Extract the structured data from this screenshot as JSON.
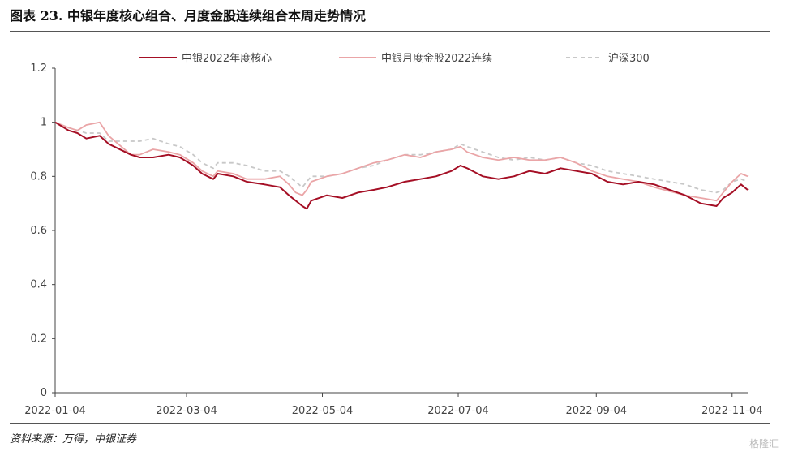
{
  "header": {
    "title": "图表 23. 中银年度核心组合、月度金股连续组合本周走势情况"
  },
  "footer": {
    "source": "资料来源：万得，中银证券",
    "watermark": "格隆汇"
  },
  "colors": {
    "core": "#a50f25",
    "monthly": "#eaa5a7",
    "csi300": "#c8c8c8",
    "axis": "#444444"
  },
  "chart_data": {
    "type": "line",
    "title": "",
    "xlabel": "",
    "ylabel": "",
    "ylim": [
      0,
      1.2
    ],
    "yticks": [
      "0",
      "0.2",
      "0.4",
      "0.6",
      "0.8",
      "1",
      "1.2"
    ],
    "xticks": [
      "2022-01-04",
      "2022-03-04",
      "2022-05-04",
      "2022-07-04",
      "2022-09-04",
      "2022-11-04"
    ],
    "xrange": [
      "2022-01-04",
      "2022-11-11"
    ],
    "grid": false,
    "legend_position": "top",
    "series": [
      {
        "name": "中银2022年度核心",
        "style": "solid",
        "x": [
          "2022-01-04",
          "2022-01-10",
          "2022-01-14",
          "2022-01-18",
          "2022-01-24",
          "2022-01-28",
          "2022-02-07",
          "2022-02-11",
          "2022-02-17",
          "2022-02-24",
          "2022-03-01",
          "2022-03-07",
          "2022-03-11",
          "2022-03-16",
          "2022-03-18",
          "2022-03-25",
          "2022-03-31",
          "2022-04-08",
          "2022-04-15",
          "2022-04-19",
          "2022-04-22",
          "2022-04-25",
          "2022-04-27",
          "2022-04-29",
          "2022-05-06",
          "2022-05-13",
          "2022-05-20",
          "2022-05-27",
          "2022-06-02",
          "2022-06-10",
          "2022-06-17",
          "2022-06-24",
          "2022-07-01",
          "2022-07-05",
          "2022-07-08",
          "2022-07-15",
          "2022-07-22",
          "2022-07-29",
          "2022-08-05",
          "2022-08-12",
          "2022-08-19",
          "2022-08-26",
          "2022-09-02",
          "2022-09-09",
          "2022-09-16",
          "2022-09-23",
          "2022-09-30",
          "2022-10-14",
          "2022-10-21",
          "2022-10-28",
          "2022-10-31",
          "2022-11-04",
          "2022-11-08",
          "2022-11-11"
        ],
        "values": [
          1.0,
          0.97,
          0.96,
          0.94,
          0.95,
          0.92,
          0.88,
          0.87,
          0.87,
          0.88,
          0.87,
          0.84,
          0.81,
          0.79,
          0.81,
          0.8,
          0.78,
          0.77,
          0.76,
          0.73,
          0.71,
          0.69,
          0.68,
          0.71,
          0.73,
          0.72,
          0.74,
          0.75,
          0.76,
          0.78,
          0.79,
          0.8,
          0.82,
          0.84,
          0.83,
          0.8,
          0.79,
          0.8,
          0.82,
          0.81,
          0.83,
          0.82,
          0.81,
          0.78,
          0.77,
          0.78,
          0.77,
          0.73,
          0.7,
          0.69,
          0.72,
          0.74,
          0.77,
          0.75
        ]
      },
      {
        "name": "中银月度金股2022连续",
        "style": "solid",
        "x": [
          "2022-01-04",
          "2022-01-10",
          "2022-01-14",
          "2022-01-18",
          "2022-01-24",
          "2022-01-28",
          "2022-02-07",
          "2022-02-11",
          "2022-02-17",
          "2022-02-24",
          "2022-03-01",
          "2022-03-07",
          "2022-03-11",
          "2022-03-16",
          "2022-03-18",
          "2022-03-25",
          "2022-03-31",
          "2022-04-08",
          "2022-04-15",
          "2022-04-19",
          "2022-04-22",
          "2022-04-25",
          "2022-04-27",
          "2022-04-29",
          "2022-05-06",
          "2022-05-13",
          "2022-05-20",
          "2022-05-27",
          "2022-06-02",
          "2022-06-10",
          "2022-06-17",
          "2022-06-24",
          "2022-07-01",
          "2022-07-05",
          "2022-07-08",
          "2022-07-15",
          "2022-07-22",
          "2022-07-29",
          "2022-08-05",
          "2022-08-12",
          "2022-08-19",
          "2022-08-26",
          "2022-09-02",
          "2022-09-09",
          "2022-09-16",
          "2022-09-23",
          "2022-09-30",
          "2022-10-14",
          "2022-10-21",
          "2022-10-28",
          "2022-10-31",
          "2022-11-04",
          "2022-11-08",
          "2022-11-11"
        ],
        "values": [
          1.0,
          0.98,
          0.97,
          0.99,
          1.0,
          0.95,
          0.88,
          0.88,
          0.9,
          0.89,
          0.88,
          0.85,
          0.82,
          0.8,
          0.82,
          0.81,
          0.79,
          0.79,
          0.8,
          0.77,
          0.74,
          0.73,
          0.75,
          0.78,
          0.8,
          0.81,
          0.83,
          0.85,
          0.86,
          0.88,
          0.87,
          0.89,
          0.9,
          0.91,
          0.89,
          0.87,
          0.86,
          0.87,
          0.86,
          0.86,
          0.87,
          0.85,
          0.82,
          0.8,
          0.79,
          0.78,
          0.76,
          0.73,
          0.72,
          0.71,
          0.74,
          0.78,
          0.81,
          0.8
        ]
      },
      {
        "name": "沪深300",
        "style": "dashed",
        "x": [
          "2022-01-04",
          "2022-01-10",
          "2022-01-14",
          "2022-01-18",
          "2022-01-24",
          "2022-01-28",
          "2022-02-07",
          "2022-02-11",
          "2022-02-17",
          "2022-02-24",
          "2022-03-01",
          "2022-03-07",
          "2022-03-11",
          "2022-03-16",
          "2022-03-18",
          "2022-03-25",
          "2022-03-31",
          "2022-04-08",
          "2022-04-15",
          "2022-04-19",
          "2022-04-22",
          "2022-04-25",
          "2022-04-27",
          "2022-04-29",
          "2022-05-06",
          "2022-05-13",
          "2022-05-20",
          "2022-05-27",
          "2022-06-02",
          "2022-06-10",
          "2022-06-17",
          "2022-06-24",
          "2022-07-01",
          "2022-07-05",
          "2022-07-08",
          "2022-07-15",
          "2022-07-22",
          "2022-07-29",
          "2022-08-05",
          "2022-08-12",
          "2022-08-19",
          "2022-08-26",
          "2022-09-02",
          "2022-09-09",
          "2022-09-16",
          "2022-09-23",
          "2022-09-30",
          "2022-10-14",
          "2022-10-21",
          "2022-10-28",
          "2022-10-31",
          "2022-11-04",
          "2022-11-08",
          "2022-11-11"
        ],
        "values": [
          1.0,
          0.98,
          0.97,
          0.96,
          0.96,
          0.93,
          0.93,
          0.93,
          0.94,
          0.92,
          0.91,
          0.88,
          0.85,
          0.83,
          0.85,
          0.85,
          0.84,
          0.82,
          0.82,
          0.8,
          0.78,
          0.76,
          0.78,
          0.8,
          0.8,
          0.81,
          0.83,
          0.84,
          0.86,
          0.88,
          0.88,
          0.89,
          0.9,
          0.92,
          0.91,
          0.89,
          0.87,
          0.86,
          0.87,
          0.86,
          0.87,
          0.85,
          0.84,
          0.82,
          0.81,
          0.8,
          0.79,
          0.77,
          0.75,
          0.74,
          0.75,
          0.78,
          0.79,
          0.78
        ]
      }
    ]
  }
}
